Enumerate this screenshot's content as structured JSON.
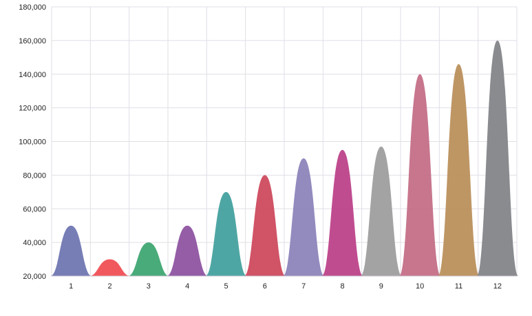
{
  "chart_data": {
    "type": "area",
    "subtype": "bell-shaped peaks (spline area per category)",
    "title": "",
    "xlabel": "",
    "ylabel": "",
    "categories": [
      "1",
      "2",
      "3",
      "4",
      "5",
      "6",
      "7",
      "8",
      "9",
      "10",
      "11",
      "12"
    ],
    "values": [
      50000,
      30000,
      40000,
      50000,
      70000,
      80000,
      90000,
      95000,
      97000,
      140000,
      146000,
      160000
    ],
    "ylim": [
      20000,
      180000
    ],
    "yticks": [
      20000,
      40000,
      60000,
      80000,
      100000,
      120000,
      140000,
      160000,
      180000
    ],
    "ytick_labels": [
      "20,000",
      "40,000",
      "60,000",
      "80,000",
      "100,000",
      "120,000",
      "140,000",
      "160,000",
      "180,000"
    ],
    "grid": true,
    "legend": null,
    "colors": [
      "#6b73b0",
      "#f04a4f",
      "#3aa46e",
      "#8b4f9e",
      "#3f9e9c",
      "#cc4459",
      "#8a80b8",
      "#bb3d87",
      "#9b9b9b",
      "#c26a84",
      "#b98d57",
      "#7f8185"
    ]
  }
}
